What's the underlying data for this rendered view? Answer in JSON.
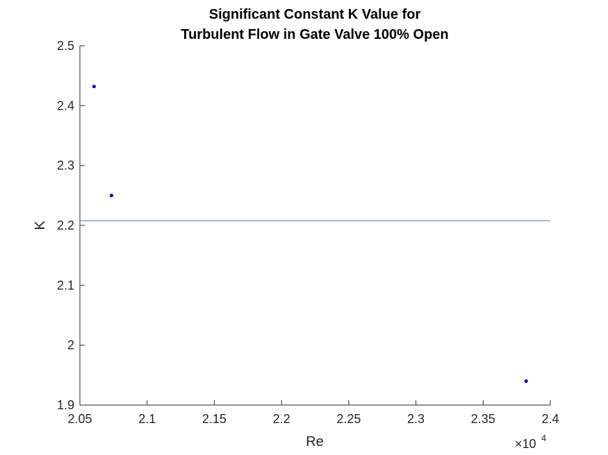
{
  "chart_data": {
    "type": "scatter",
    "title": [
      "Significant Constant K Value for",
      "Turbulent Flow in Gate Valve 100% Open"
    ],
    "xlabel": "Re",
    "ylabel": "K",
    "x_exponent_label": "×10",
    "x_exponent_power": "4",
    "xlim": [
      2.05,
      2.4
    ],
    "ylim": [
      1.9,
      2.5
    ],
    "x_ticks": [
      2.05,
      2.1,
      2.15,
      2.2,
      2.25,
      2.3,
      2.35,
      2.4
    ],
    "x_tick_labels": [
      "2.05",
      "2.1",
      "2.15",
      "2.2",
      "2.25",
      "2.3",
      "2.35",
      "2.4"
    ],
    "y_ticks": [
      1.9,
      2.0,
      2.1,
      2.2,
      2.3,
      2.4,
      2.5
    ],
    "y_tick_labels": [
      "1.9",
      "2",
      "2.1",
      "2.2",
      "2.3",
      "2.4",
      "2.5"
    ],
    "grid": false,
    "series": [
      {
        "type": "scatter",
        "color": "#0000ff",
        "points": [
          {
            "x": 2.0605,
            "y": 2.432
          },
          {
            "x": 2.0735,
            "y": 2.25
          },
          {
            "x": 2.382,
            "y": 1.94
          }
        ]
      },
      {
        "type": "line",
        "color": "#4f6bd8",
        "x": [
          2.05,
          2.4
        ],
        "y": [
          2.208,
          2.208
        ]
      }
    ]
  }
}
